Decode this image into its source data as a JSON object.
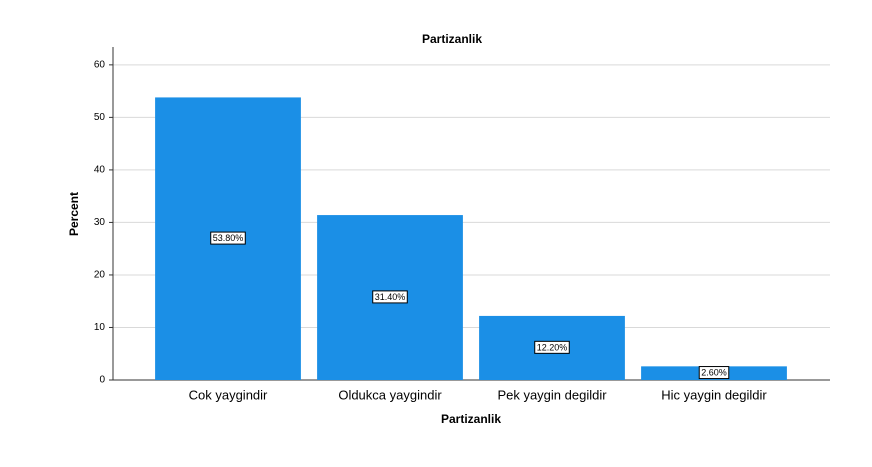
{
  "chart_data": {
    "type": "bar",
    "title": "Partizanlik",
    "x_label": "Partizanlik",
    "y_label": "Percent",
    "categories": [
      "Cok yaygindir",
      "Oldukca yaygindir",
      "Pek yaygin degildir",
      "Hic yaygin degildir"
    ],
    "values": [
      53.8,
      31.4,
      12.2,
      2.6
    ],
    "value_labels": [
      "53.80%",
      "31.40%",
      "12.20%",
      "2.60%"
    ],
    "color": "#1b8fe6",
    "ylim": [
      0,
      63.4
    ],
    "yticks": [
      0,
      10,
      20,
      30,
      40,
      50,
      60
    ],
    "grid": true
  }
}
